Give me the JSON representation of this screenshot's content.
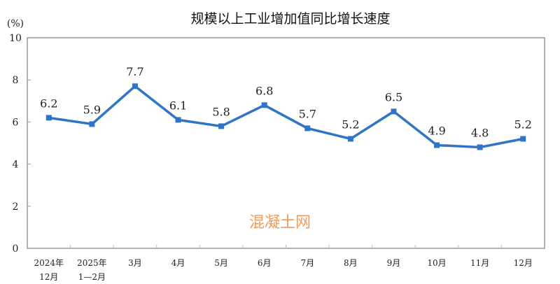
{
  "chart_data": {
    "type": "line",
    "title": "规模以上工业增加值同比增长速度",
    "ylabel": "(%)",
    "xlabel": "",
    "ylim": [
      0,
      10
    ],
    "yticks": [
      "0",
      "2",
      "4",
      "6",
      "8",
      "10"
    ],
    "categories": [
      [
        "2024年",
        "12月"
      ],
      [
        "2025年",
        "1—2月"
      ],
      [
        "3月"
      ],
      [
        "4月"
      ],
      [
        "5月"
      ],
      [
        "6月"
      ],
      [
        "7月"
      ],
      [
        "8月"
      ],
      [
        "9月"
      ],
      [
        "10月"
      ],
      [
        "11月"
      ],
      [
        "12月"
      ]
    ],
    "series": [
      {
        "name": "同比增长速度",
        "values": [
          6.2,
          5.9,
          7.7,
          6.1,
          5.8,
          6.8,
          5.7,
          5.2,
          6.5,
          4.9,
          4.8,
          5.2
        ],
        "color": "#2f74c6"
      }
    ],
    "data_labels": [
      "6.2",
      "5.9",
      "7.7",
      "6.1",
      "5.8",
      "6.8",
      "5.7",
      "5.2",
      "6.5",
      "4.9",
      "4.8",
      "5.2"
    ],
    "grid": false,
    "watermark": "混凝土网"
  }
}
